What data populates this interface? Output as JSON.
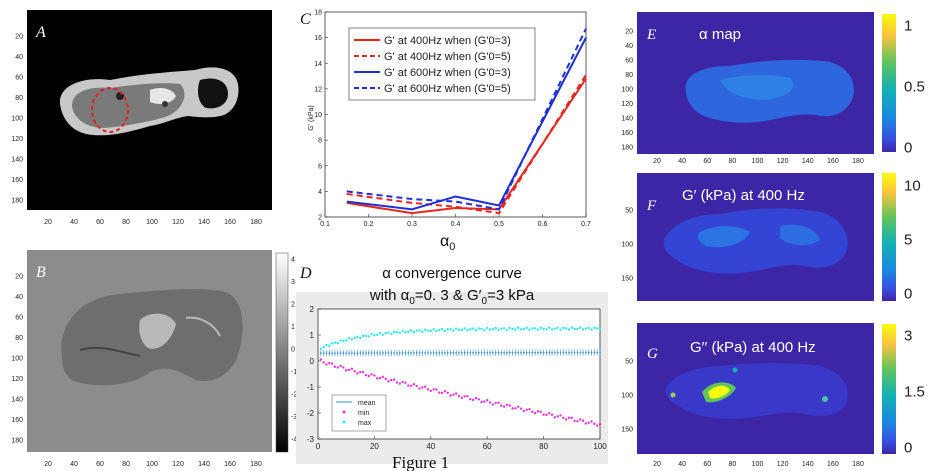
{
  "figure": {
    "caption": "Figure 1",
    "panels": {
      "A": {
        "letter": "A",
        "x_ticks": [
          "20",
          "40",
          "60",
          "80",
          "100",
          "120",
          "140",
          "160",
          "180"
        ],
        "y_ticks": [
          "20",
          "40",
          "60",
          "80",
          "100",
          "120",
          "140",
          "160",
          "180"
        ]
      },
      "B": {
        "letter": "B",
        "x_ticks": [
          "20",
          "40",
          "60",
          "80",
          "100",
          "120",
          "140",
          "160",
          "180"
        ],
        "y_ticks": [
          "20",
          "40",
          "60",
          "80",
          "100",
          "120",
          "140",
          "160",
          "180"
        ],
        "colorbar_ticks": [
          "4",
          "3",
          "2",
          "1",
          "0",
          "-1",
          "-2",
          "-3",
          "-4"
        ]
      },
      "C": {
        "letter": "C"
      },
      "D": {
        "letter": "D"
      },
      "E": {
        "letter": "E",
        "title": "α map",
        "y_ticks": [
          "20",
          "40",
          "60",
          "80",
          "100",
          "120",
          "140",
          "160",
          "180"
        ],
        "x_ticks": [
          "20",
          "40",
          "60",
          "80",
          "100",
          "120",
          "140",
          "160",
          "180"
        ],
        "colorbar_ticks": [
          "1",
          "0.5",
          "0"
        ]
      },
      "F": {
        "letter": "F",
        "title": "G′ (kPa) at 400 Hz",
        "y_ticks": [
          "50",
          "100",
          "150"
        ],
        "colorbar_ticks": [
          "10",
          "5",
          "0"
        ]
      },
      "G": {
        "letter": "G",
        "title": "G′′ (kPa) at 400 Hz",
        "y_ticks": [
          "50",
          "100",
          "150"
        ],
        "x_ticks": [
          "20",
          "40",
          "60",
          "80",
          "100",
          "120",
          "140",
          "160",
          "180"
        ],
        "colorbar_ticks": [
          "3",
          "1.5",
          "0"
        ]
      }
    }
  },
  "chart_data": [
    {
      "id": "C",
      "type": "line",
      "ylabel": "G' (kPa)",
      "xlabel": "α",
      "xlabel_sub": "0",
      "xlim": [
        0.1,
        0.7
      ],
      "ylim": [
        2,
        18
      ],
      "x_ticks": [
        "0.1",
        "0.2",
        "0.3",
        "0.4",
        "0.5",
        "0.6",
        "0.7"
      ],
      "y_ticks": [
        "2",
        "4",
        "6",
        "8",
        "10",
        "12",
        "14",
        "16",
        "18"
      ],
      "x": [
        0.15,
        0.3,
        0.4,
        0.5,
        0.7
      ],
      "series": [
        {
          "name": "G' at 400Hz when (G'0=3)",
          "color": "#e8261f",
          "dash": false,
          "values": [
            3.1,
            2.3,
            2.7,
            2.6,
            12.8
          ]
        },
        {
          "name": "G' at 400Hz when (G'0=5)",
          "color": "#e8261f",
          "dash": true,
          "values": [
            3.8,
            3.1,
            2.8,
            2.3,
            13.1
          ]
        },
        {
          "name": "G' at 600Hz when (G'0=3)",
          "color": "#1f2fd6",
          "dash": false,
          "values": [
            3.2,
            2.6,
            3.6,
            2.9,
            16.0
          ]
        },
        {
          "name": "G' at 600Hz when (G'0=5)",
          "color": "#1f2fd6",
          "dash": true,
          "values": [
            4.0,
            3.4,
            3.2,
            2.6,
            16.7
          ]
        }
      ]
    },
    {
      "id": "D",
      "type": "scatter",
      "title_line1": "α convergence curve",
      "title_line2_parts": [
        "with α",
        "0",
        "=0. 3 & G′",
        "0",
        "=3 kPa"
      ],
      "xlim": [
        0,
        100
      ],
      "ylim": [
        -3,
        2
      ],
      "x_ticks": [
        "0",
        "20",
        "40",
        "60",
        "80",
        "100"
      ],
      "y_ticks": [
        "2",
        "1",
        "0",
        "-1",
        "-2",
        "-3"
      ],
      "series": [
        {
          "name": "mean",
          "color": "#3c8fd1",
          "start": 0.3,
          "end": 0.33,
          "error": 0.12
        },
        {
          "name": "min",
          "color": "#e233d7",
          "start": 0.05,
          "end": -2.45
        },
        {
          "name": "max",
          "color": "#2ee6e6",
          "start": 0.45,
          "end": 1.25
        }
      ]
    }
  ]
}
